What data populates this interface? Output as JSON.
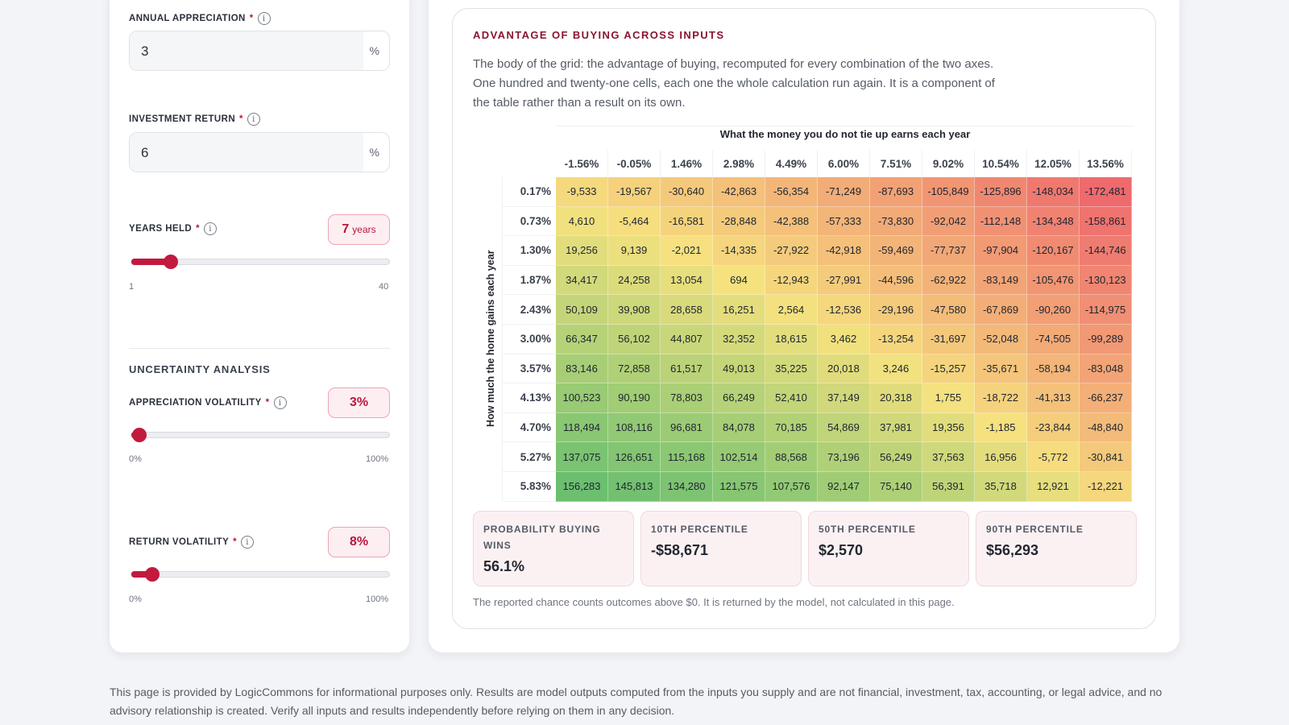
{
  "inputs": {
    "annual_appreciation": {
      "label": "ANNUAL APPRECIATION",
      "required": "*",
      "value": "3",
      "unit": "%"
    },
    "investment_return": {
      "label": "INVESTMENT RETURN",
      "required": "*",
      "value": "6",
      "unit": "%"
    },
    "years_held": {
      "label": "YEARS HELD",
      "required": "*",
      "value": "7",
      "unit": "years",
      "min_label": "1",
      "max_label": "40",
      "min": 1,
      "max": 40,
      "current": 7
    }
  },
  "uncertainty": {
    "title": "UNCERTAINTY ANALYSIS",
    "appreciation_volatility": {
      "label": "APPRECIATION VOLATILITY",
      "required": "*",
      "value": "3%",
      "min_label": "0%",
      "max_label": "100%",
      "fraction": 0.03
    },
    "return_volatility": {
      "label": "RETURN VOLATILITY",
      "required": "*",
      "value": "8%",
      "min_label": "0%",
      "max_label": "100%",
      "fraction": 0.08
    }
  },
  "grid_card": {
    "title": "ADVANTAGE OF BUYING ACROSS INPUTS",
    "description": "The body of the grid: the advantage of buying, recomputed for every combination of the two axes. One hundred and twenty-one cells, each one the whole calculation run again. It is a component of the table rather than a result on its own.",
    "footnote": "The reported chance counts outcomes above $0. It is returned by the model, not calculated in this page."
  },
  "chart_data": {
    "type": "heatmap",
    "xlabel": "What the money you do not tie up earns each year",
    "ylabel": "How much the home gains each year",
    "x": [
      "-1.56%",
      "-0.05%",
      "1.46%",
      "2.98%",
      "4.49%",
      "6.00%",
      "7.51%",
      "9.02%",
      "10.54%",
      "12.05%",
      "13.56%"
    ],
    "y": [
      "0.17%",
      "0.73%",
      "1.30%",
      "1.87%",
      "2.43%",
      "3.00%",
      "3.57%",
      "4.13%",
      "4.70%",
      "5.27%",
      "5.83%"
    ],
    "values": [
      [
        -9533,
        -19567,
        -30640,
        -42863,
        -56354,
        -71249,
        -87693,
        -105849,
        -125896,
        -148034,
        -172481
      ],
      [
        4610,
        -5464,
        -16581,
        -28848,
        -42388,
        -57333,
        -73830,
        -92042,
        -112148,
        -134348,
        -158861
      ],
      [
        19256,
        9139,
        -2021,
        -14335,
        -27922,
        -42918,
        -59469,
        -77737,
        -97904,
        -120167,
        -144746
      ],
      [
        34417,
        24258,
        13054,
        694,
        -12943,
        -27991,
        -44596,
        -62922,
        -83149,
        -105476,
        -130123
      ],
      [
        50109,
        39908,
        28658,
        16251,
        2564,
        -12536,
        -29196,
        -47580,
        -67869,
        -90260,
        -114975
      ],
      [
        66347,
        56102,
        44807,
        32352,
        18615,
        3462,
        -13254,
        -31697,
        -52048,
        -74505,
        -99289
      ],
      [
        83146,
        72858,
        61517,
        49013,
        35225,
        20018,
        3246,
        -15257,
        -35671,
        -58194,
        -83048
      ],
      [
        100523,
        90190,
        78803,
        66249,
        52410,
        37149,
        20318,
        1755,
        -18722,
        -41313,
        -66237
      ],
      [
        118494,
        108116,
        96681,
        84078,
        70185,
        54869,
        37981,
        19356,
        -1185,
        -23844,
        -48840
      ],
      [
        137075,
        126651,
        115168,
        102514,
        88568,
        73196,
        56249,
        37563,
        16956,
        -5772,
        -30841
      ],
      [
        156283,
        145813,
        134280,
        121575,
        107576,
        92147,
        75140,
        56391,
        35718,
        12921,
        -12221
      ]
    ],
    "colors": {
      "negative": "#ee6a6d",
      "neutral": "#f6e27f",
      "positive": "#6bbf6f"
    }
  },
  "stats": [
    {
      "label": "PROBABILITY BUYING WINS",
      "value": "56.1%"
    },
    {
      "label": "10TH PERCENTILE",
      "value": "-$58,671"
    },
    {
      "label": "50TH PERCENTILE",
      "value": "$2,570"
    },
    {
      "label": "90TH PERCENTILE",
      "value": "$56,293"
    }
  ],
  "disclaimer": "This page is provided by LogicCommons for informational purposes only. Results are model outputs computed from the inputs you supply and are not financial, investment, tax, accounting, or legal advice, and no advisory relationship is created. Verify all inputs and results independently before relying on them in any decision.",
  "theme": {
    "accent": "#c2193f",
    "title_color": "#8a1433"
  }
}
